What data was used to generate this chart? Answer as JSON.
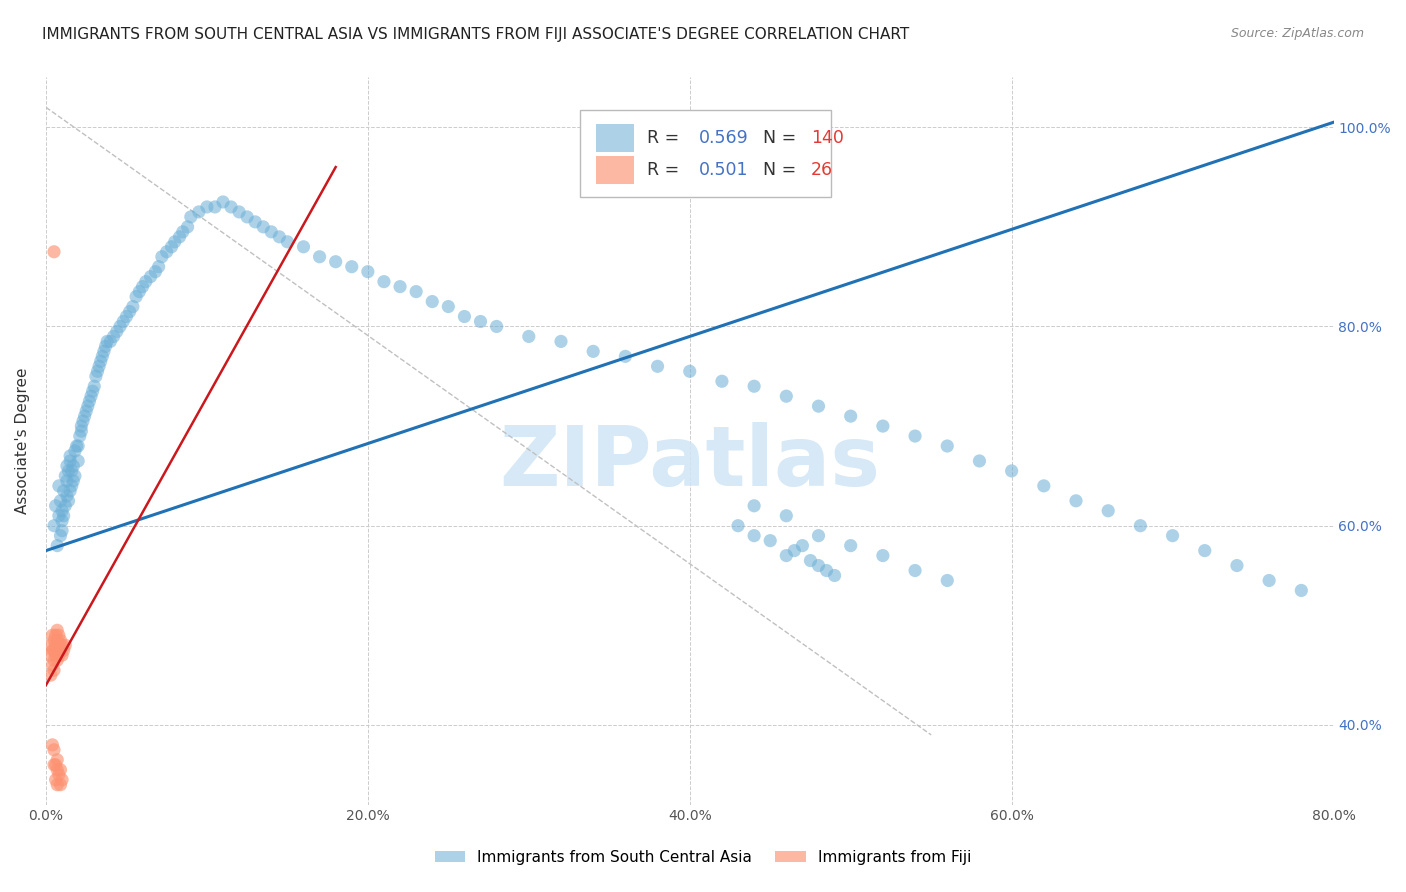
{
  "title": "IMMIGRANTS FROM SOUTH CENTRAL ASIA VS IMMIGRANTS FROM FIJI ASSOCIATE'S DEGREE CORRELATION CHART",
  "source": "Source: ZipAtlas.com",
  "ylabel_label": "Associate's Degree",
  "legend_labels": [
    "Immigrants from South Central Asia",
    "Immigrants from Fiji"
  ],
  "R_blue": 0.569,
  "N_blue": 140,
  "R_pink": 0.501,
  "N_pink": 26,
  "blue_color": "#6baed6",
  "blue_line_color": "#2171b5",
  "pink_color": "#fc9272",
  "pink_line_color": "#cb181d",
  "watermark": "ZIPatlas",
  "title_fontsize": 11,
  "axis_label_fontsize": 11,
  "tick_fontsize": 10,
  "xlim": [
    0.0,
    0.8
  ],
  "ylim": [
    0.32,
    1.05
  ],
  "ytick_vals": [
    0.4,
    0.6,
    0.8,
    1.0
  ],
  "xtick_vals": [
    0.0,
    0.2,
    0.4,
    0.6,
    0.8
  ],
  "blue_line_x": [
    0.0,
    0.8
  ],
  "blue_line_y": [
    0.575,
    1.005
  ],
  "pink_line_x": [
    0.0,
    0.18
  ],
  "pink_line_y": [
    0.44,
    0.96
  ],
  "diag_line_x": [
    0.0,
    0.55
  ],
  "diag_line_y": [
    1.02,
    0.39
  ],
  "blue_scatter_x": [
    0.005,
    0.006,
    0.007,
    0.008,
    0.008,
    0.009,
    0.009,
    0.01,
    0.01,
    0.01,
    0.011,
    0.011,
    0.012,
    0.012,
    0.013,
    0.013,
    0.013,
    0.014,
    0.014,
    0.015,
    0.015,
    0.015,
    0.016,
    0.016,
    0.017,
    0.017,
    0.018,
    0.018,
    0.019,
    0.02,
    0.02,
    0.021,
    0.022,
    0.022,
    0.023,
    0.024,
    0.025,
    0.026,
    0.027,
    0.028,
    0.029,
    0.03,
    0.031,
    0.032,
    0.033,
    0.034,
    0.035,
    0.036,
    0.037,
    0.038,
    0.04,
    0.042,
    0.044,
    0.046,
    0.048,
    0.05,
    0.052,
    0.054,
    0.056,
    0.058,
    0.06,
    0.062,
    0.065,
    0.068,
    0.07,
    0.072,
    0.075,
    0.078,
    0.08,
    0.083,
    0.085,
    0.088,
    0.09,
    0.095,
    0.1,
    0.105,
    0.11,
    0.115,
    0.12,
    0.125,
    0.13,
    0.135,
    0.14,
    0.145,
    0.15,
    0.16,
    0.17,
    0.18,
    0.19,
    0.2,
    0.21,
    0.22,
    0.23,
    0.24,
    0.25,
    0.26,
    0.27,
    0.28,
    0.3,
    0.32,
    0.34,
    0.36,
    0.38,
    0.4,
    0.42,
    0.44,
    0.46,
    0.48,
    0.5,
    0.52,
    0.54,
    0.56,
    0.58,
    0.6,
    0.62,
    0.64,
    0.66,
    0.68,
    0.7,
    0.72,
    0.74,
    0.76,
    0.78,
    0.44,
    0.46,
    0.48,
    0.5,
    0.52,
    0.54,
    0.56,
    0.46,
    0.48,
    0.49,
    0.47,
    0.44,
    0.43,
    0.45,
    0.465,
    0.475,
    0.485
  ],
  "blue_scatter_y": [
    0.6,
    0.62,
    0.58,
    0.61,
    0.64,
    0.59,
    0.625,
    0.605,
    0.615,
    0.595,
    0.635,
    0.61,
    0.65,
    0.62,
    0.66,
    0.63,
    0.645,
    0.655,
    0.625,
    0.665,
    0.635,
    0.67,
    0.64,
    0.655,
    0.66,
    0.645,
    0.675,
    0.65,
    0.68,
    0.665,
    0.68,
    0.69,
    0.695,
    0.7,
    0.705,
    0.71,
    0.715,
    0.72,
    0.725,
    0.73,
    0.735,
    0.74,
    0.75,
    0.755,
    0.76,
    0.765,
    0.77,
    0.775,
    0.78,
    0.785,
    0.785,
    0.79,
    0.795,
    0.8,
    0.805,
    0.81,
    0.815,
    0.82,
    0.83,
    0.835,
    0.84,
    0.845,
    0.85,
    0.855,
    0.86,
    0.87,
    0.875,
    0.88,
    0.885,
    0.89,
    0.895,
    0.9,
    0.91,
    0.915,
    0.92,
    0.92,
    0.925,
    0.92,
    0.915,
    0.91,
    0.905,
    0.9,
    0.895,
    0.89,
    0.885,
    0.88,
    0.87,
    0.865,
    0.86,
    0.855,
    0.845,
    0.84,
    0.835,
    0.825,
    0.82,
    0.81,
    0.805,
    0.8,
    0.79,
    0.785,
    0.775,
    0.77,
    0.76,
    0.755,
    0.745,
    0.74,
    0.73,
    0.72,
    0.71,
    0.7,
    0.69,
    0.68,
    0.665,
    0.655,
    0.64,
    0.625,
    0.615,
    0.6,
    0.59,
    0.575,
    0.56,
    0.545,
    0.535,
    0.62,
    0.61,
    0.59,
    0.58,
    0.57,
    0.555,
    0.545,
    0.57,
    0.56,
    0.55,
    0.58,
    0.59,
    0.6,
    0.585,
    0.575,
    0.565,
    0.555
  ],
  "pink_scatter_x": [
    0.002,
    0.003,
    0.003,
    0.004,
    0.004,
    0.004,
    0.005,
    0.005,
    0.005,
    0.005,
    0.006,
    0.006,
    0.006,
    0.007,
    0.007,
    0.007,
    0.007,
    0.008,
    0.008,
    0.008,
    0.009,
    0.009,
    0.01,
    0.01,
    0.011,
    0.012
  ],
  "pink_scatter_y": [
    0.47,
    0.45,
    0.48,
    0.46,
    0.475,
    0.49,
    0.455,
    0.465,
    0.475,
    0.485,
    0.47,
    0.48,
    0.49,
    0.465,
    0.475,
    0.485,
    0.495,
    0.47,
    0.48,
    0.49,
    0.475,
    0.485,
    0.47,
    0.48,
    0.475,
    0.48
  ],
  "pink_outlier_x": [
    0.005
  ],
  "pink_outlier_y": [
    0.875
  ],
  "pink_low_x": [
    0.004,
    0.005,
    0.005,
    0.006,
    0.006,
    0.007,
    0.007,
    0.007,
    0.008,
    0.009,
    0.009,
    0.01
  ],
  "pink_low_y": [
    0.38,
    0.36,
    0.375,
    0.345,
    0.36,
    0.34,
    0.355,
    0.365,
    0.35,
    0.34,
    0.355,
    0.345
  ]
}
